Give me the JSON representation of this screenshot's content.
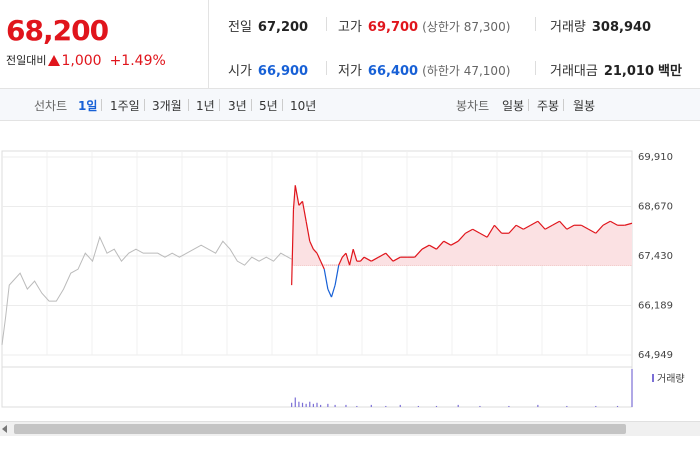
{
  "quote": {
    "price": "68,200",
    "change_label": "전일대비",
    "change_value": "1,000",
    "change_pct": "+1.49%"
  },
  "stats": {
    "prev_close": {
      "label": "전일",
      "value": "67,200"
    },
    "high": {
      "label": "고가",
      "value": "69,700",
      "sub": "(상한가 87,300)"
    },
    "volume": {
      "label": "거래량",
      "value": "308,940"
    },
    "open": {
      "label": "시가",
      "value": "66,900"
    },
    "low": {
      "label": "저가",
      "value": "66,400",
      "sub": "(하한가 47,100)"
    },
    "amount": {
      "label": "거래대금",
      "value": "21,010",
      "unit": "백만"
    }
  },
  "tabs": {
    "line_title": "선차트",
    "line_items": [
      "1일",
      "1주일",
      "3개월",
      "1년",
      "3년",
      "5년",
      "10년"
    ],
    "line_selected": "1일",
    "candle_title": "봉차트",
    "candle_items": [
      "일봉",
      "주봉",
      "월봉"
    ]
  },
  "colors": {
    "up": "#e0151c",
    "down": "#1760d6",
    "prev_day_line": "#bbbbbb",
    "up_fill": "#fbe1e3"
  },
  "chart_data": {
    "type": "line",
    "ylim": [
      64949,
      69910
    ],
    "y_ticks": [
      "69,910",
      "68,670",
      "67,430",
      "66,189",
      "64,949"
    ],
    "base_price": 67200,
    "volume_legend": "거래량",
    "prev_day": [
      [
        0,
        65200
      ],
      [
        1,
        65900
      ],
      [
        2,
        66700
      ],
      [
        3,
        66800
      ],
      [
        5,
        67000
      ],
      [
        7,
        66600
      ],
      [
        9,
        66800
      ],
      [
        11,
        66500
      ],
      [
        13,
        66300
      ],
      [
        15,
        66300
      ],
      [
        17,
        66600
      ],
      [
        19,
        67000
      ],
      [
        21,
        67100
      ],
      [
        23,
        67500
      ],
      [
        25,
        67300
      ],
      [
        27,
        67900
      ],
      [
        29,
        67500
      ],
      [
        31,
        67600
      ],
      [
        33,
        67300
      ],
      [
        35,
        67500
      ],
      [
        37,
        67600
      ],
      [
        39,
        67500
      ],
      [
        41,
        67500
      ],
      [
        43,
        67500
      ],
      [
        45,
        67400
      ],
      [
        47,
        67500
      ],
      [
        49,
        67400
      ],
      [
        51,
        67500
      ],
      [
        53,
        67600
      ],
      [
        55,
        67700
      ],
      [
        57,
        67600
      ],
      [
        59,
        67500
      ],
      [
        61,
        67800
      ],
      [
        63,
        67600
      ],
      [
        65,
        67300
      ],
      [
        67,
        67200
      ],
      [
        69,
        67400
      ],
      [
        71,
        67300
      ],
      [
        73,
        67400
      ],
      [
        75,
        67300
      ],
      [
        77,
        67500
      ],
      [
        79,
        67400
      ],
      [
        80,
        67350
      ]
    ],
    "today": [
      [
        80,
        66700
      ],
      [
        80.5,
        68600
      ],
      [
        81,
        69200
      ],
      [
        82,
        68700
      ],
      [
        83,
        68800
      ],
      [
        84,
        68300
      ],
      [
        85,
        67800
      ],
      [
        86,
        67600
      ],
      [
        87,
        67500
      ],
      [
        88,
        67300
      ],
      [
        89,
        67100
      ],
      [
        90,
        66600
      ],
      [
        91,
        66400
      ],
      [
        92,
        66700
      ],
      [
        93,
        67200
      ],
      [
        94,
        67400
      ],
      [
        95,
        67500
      ],
      [
        96,
        67200
      ],
      [
        97,
        67600
      ],
      [
        98,
        67300
      ],
      [
        99,
        67300
      ],
      [
        100,
        67400
      ],
      [
        102,
        67300
      ],
      [
        104,
        67400
      ],
      [
        106,
        67500
      ],
      [
        108,
        67300
      ],
      [
        110,
        67400
      ],
      [
        112,
        67400
      ],
      [
        114,
        67400
      ],
      [
        116,
        67600
      ],
      [
        118,
        67700
      ],
      [
        120,
        67600
      ],
      [
        122,
        67800
      ],
      [
        124,
        67700
      ],
      [
        126,
        67800
      ],
      [
        128,
        68000
      ],
      [
        130,
        68100
      ],
      [
        132,
        68000
      ],
      [
        134,
        67900
      ],
      [
        136,
        68200
      ],
      [
        138,
        68000
      ],
      [
        140,
        68000
      ],
      [
        142,
        68200
      ],
      [
        144,
        68100
      ],
      [
        146,
        68200
      ],
      [
        148,
        68300
      ],
      [
        150,
        68100
      ],
      [
        152,
        68200
      ],
      [
        154,
        68300
      ],
      [
        156,
        68100
      ],
      [
        158,
        68200
      ],
      [
        160,
        68200
      ],
      [
        162,
        68100
      ],
      [
        164,
        68000
      ],
      [
        166,
        68200
      ],
      [
        168,
        68300
      ],
      [
        170,
        68200
      ],
      [
        172,
        68200
      ],
      [
        174,
        68250
      ]
    ],
    "volume": [
      [
        80,
        4
      ],
      [
        81,
        9
      ],
      [
        82,
        5
      ],
      [
        83,
        4
      ],
      [
        84,
        3
      ],
      [
        85,
        5
      ],
      [
        86,
        3
      ],
      [
        87,
        4
      ],
      [
        88,
        2
      ],
      [
        90,
        3
      ],
      [
        92,
        2
      ],
      [
        95,
        2
      ],
      [
        98,
        1
      ],
      [
        102,
        2
      ],
      [
        106,
        1
      ],
      [
        110,
        2
      ],
      [
        115,
        1
      ],
      [
        120,
        1
      ],
      [
        126,
        2
      ],
      [
        132,
        1
      ],
      [
        140,
        1
      ],
      [
        148,
        2
      ],
      [
        156,
        1
      ],
      [
        164,
        1
      ],
      [
        170,
        1
      ],
      [
        174,
        36
      ]
    ]
  }
}
